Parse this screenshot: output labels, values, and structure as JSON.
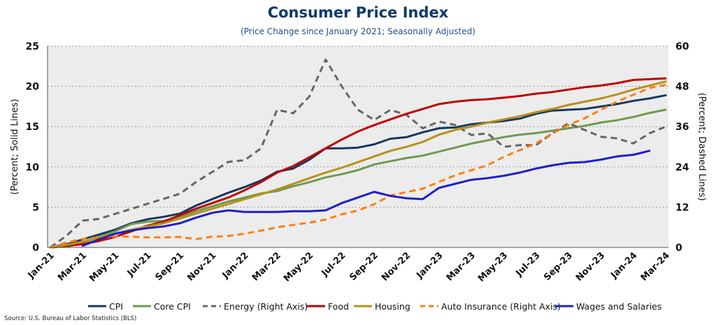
{
  "chart_data": {
    "type": "line",
    "title": "Consumer Price Index",
    "subtitle": "(Price Change since January 2021; Seasonally Adjusted)",
    "ylabel_left": "(Percent; Solid Lines)",
    "ylabel_right": "(Percent; Dashed Lines)",
    "ylim_left": [
      0,
      25
    ],
    "ylim_right": [
      0,
      60
    ],
    "yticks_left": [
      0,
      5,
      10,
      15,
      20,
      25
    ],
    "yticks_right": [
      0,
      12,
      24,
      36,
      48,
      60
    ],
    "grid": true,
    "legend_position": "bottom",
    "x": [
      "Jan-21",
      "Feb-21",
      "Mar-21",
      "Apr-21",
      "May-21",
      "Jun-21",
      "Jul-21",
      "Aug-21",
      "Sep-21",
      "Oct-21",
      "Nov-21",
      "Dec-21",
      "Jan-22",
      "Feb-22",
      "Mar-22",
      "Apr-22",
      "May-22",
      "Jun-22",
      "Jul-22",
      "Aug-22",
      "Sep-22",
      "Oct-22",
      "Nov-22",
      "Dec-22",
      "Jan-23",
      "Feb-23",
      "Mar-23",
      "Apr-23",
      "May-23",
      "Jun-23",
      "Jul-23",
      "Aug-23",
      "Sep-23",
      "Oct-23",
      "Nov-23",
      "Dec-23",
      "Jan-24",
      "Feb-24",
      "Mar-24"
    ],
    "x_tick_labels": [
      "Jan-21",
      "Mar-21",
      "May-21",
      "Jul-21",
      "Sep-21",
      "Nov-21",
      "Jan-22",
      "Mar-22",
      "May-22",
      "Jul-22",
      "Sep-22",
      "Nov-22",
      "Jan-23",
      "Mar-23",
      "May-23",
      "Jul-23",
      "Sep-23",
      "Nov-23",
      "Jan-24",
      "Mar-24"
    ],
    "series": [
      {
        "name": "CPI",
        "axis": "left",
        "style": "solid",
        "color": "#16385f",
        "values": [
          0.0,
          0.4,
          1.0,
          1.6,
          2.2,
          3.0,
          3.5,
          3.8,
          4.2,
          5.2,
          6.0,
          6.8,
          7.5,
          8.3,
          9.4,
          9.8,
          10.9,
          12.3,
          12.3,
          12.4,
          12.8,
          13.5,
          13.7,
          14.3,
          14.8,
          14.9,
          15.3,
          15.5,
          15.7,
          16.0,
          16.6,
          17.0,
          17.1,
          17.2,
          17.5,
          17.8,
          18.2,
          18.5,
          18.9
        ]
      },
      {
        "name": "Core CPI",
        "axis": "left",
        "style": "solid",
        "color": "#6f9a4e",
        "values": [
          0.0,
          0.1,
          0.5,
          1.3,
          2.0,
          2.9,
          3.2,
          3.3,
          3.8,
          4.5,
          5.1,
          5.7,
          6.2,
          6.7,
          7.0,
          7.6,
          8.1,
          8.7,
          9.1,
          9.6,
          10.3,
          10.7,
          11.1,
          11.4,
          11.9,
          12.4,
          12.9,
          13.3,
          13.7,
          14.0,
          14.2,
          14.5,
          14.8,
          15.1,
          15.5,
          15.8,
          16.2,
          16.7,
          17.1
        ]
      },
      {
        "name": "Energy (Right Axis)",
        "axis": "right",
        "style": "dashed",
        "color": "#666666",
        "values": [
          0.0,
          3.5,
          8.0,
          8.5,
          10.0,
          11.5,
          13.0,
          14.5,
          16.0,
          19.5,
          22.5,
          25.5,
          26.0,
          29.5,
          41.0,
          40.0,
          45.0,
          56.0,
          48.0,
          41.0,
          38.0,
          41.0,
          39.5,
          35.5,
          37.5,
          36.5,
          33.5,
          34.0,
          30.0,
          30.5,
          30.5,
          34.0,
          37.0,
          35.0,
          33.0,
          32.5,
          31.0,
          34.0,
          36.0
        ]
      },
      {
        "name": "Food",
        "axis": "left",
        "style": "solid",
        "color": "#c00000",
        "values": [
          0.0,
          0.2,
          0.4,
          0.8,
          1.3,
          2.0,
          2.7,
          3.2,
          4.0,
          4.8,
          5.5,
          6.2,
          7.1,
          8.1,
          9.3,
          10.1,
          11.2,
          12.3,
          13.4,
          14.4,
          15.2,
          15.9,
          16.6,
          17.2,
          17.8,
          18.1,
          18.3,
          18.4,
          18.6,
          18.8,
          19.1,
          19.3,
          19.6,
          19.9,
          20.1,
          20.4,
          20.8,
          20.9,
          21.0
        ]
      },
      {
        "name": "Housing",
        "axis": "left",
        "style": "solid",
        "color": "#b8901a",
        "values": [
          0.0,
          0.3,
          0.7,
          1.2,
          1.7,
          2.2,
          2.6,
          3.0,
          3.6,
          4.2,
          4.8,
          5.4,
          6.0,
          6.6,
          7.2,
          7.9,
          8.6,
          9.3,
          9.9,
          10.6,
          11.3,
          12.0,
          12.5,
          13.1,
          14.0,
          14.6,
          15.0,
          15.5,
          15.9,
          16.3,
          16.8,
          17.2,
          17.7,
          18.1,
          18.5,
          19.0,
          19.6,
          20.1,
          20.6
        ]
      },
      {
        "name": "Auto Insurance (Right Axis)",
        "axis": "right",
        "style": "dashed",
        "color": "#ff7f0e",
        "values": [
          0.0,
          1.5,
          2.5,
          3.0,
          3.2,
          3.2,
          3.0,
          3.0,
          3.1,
          2.5,
          3.2,
          3.4,
          4.1,
          5.0,
          6.0,
          6.7,
          7.4,
          8.3,
          9.9,
          11.0,
          12.9,
          15.5,
          16.5,
          17.5,
          19.5,
          21.5,
          23.0,
          24.5,
          27.0,
          29.0,
          31.0,
          34.0,
          36.5,
          38.5,
          41.0,
          43.5,
          45.5,
          47.5,
          48.5
        ]
      },
      {
        "name": "Wages and Salaries",
        "axis": "left",
        "style": "solid",
        "color": "#1f1fc8",
        "start_index": 2,
        "values": [
          null,
          null,
          0.2,
          1.0,
          1.7,
          2.1,
          2.4,
          2.6,
          3.0,
          3.7,
          4.3,
          4.6,
          4.4,
          4.4,
          4.4,
          4.5,
          4.5,
          4.6,
          5.5,
          6.2,
          6.9,
          6.4,
          6.1,
          6.0,
          7.4,
          7.9,
          8.4,
          8.6,
          8.9,
          9.3,
          9.8,
          10.2,
          10.5,
          10.6,
          10.9,
          11.3,
          11.5,
          12.0,
          null
        ]
      }
    ]
  },
  "source": "Source: U.S. Bureau of Labor Statistics (BLS)"
}
